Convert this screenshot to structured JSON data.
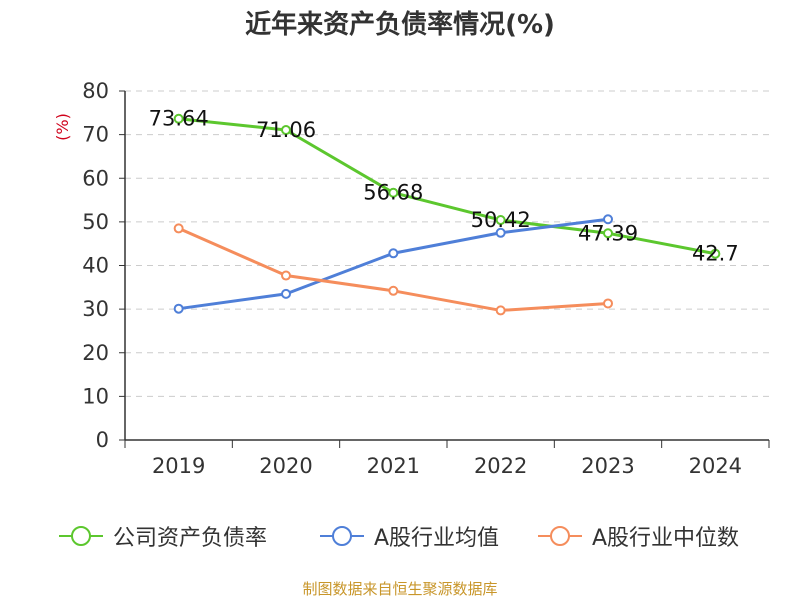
{
  "title": "近年来资产负债率情况(%)",
  "source": "制图数据来自恒生聚源数据库",
  "chart_data": {
    "type": "line",
    "title": "近年来资产负债率情况(%)",
    "ylabel": "(%)",
    "xlabel": "",
    "ylim": [
      0,
      80
    ],
    "yticks": [
      0,
      10,
      20,
      30,
      40,
      50,
      60,
      70,
      80
    ],
    "grid": true,
    "legend_position": "bottom",
    "categories": [
      "2019",
      "2020",
      "2021",
      "2022",
      "2023",
      "2024"
    ],
    "series": [
      {
        "name": "公司资产负债率",
        "color": "#5cc72e",
        "values": [
          73.64,
          71.06,
          56.68,
          50.42,
          47.39,
          42.7
        ],
        "data_labels": [
          "73.64",
          "71.06",
          "56.68",
          "50.42",
          "47.39",
          "42.7"
        ]
      },
      {
        "name": "A股行业均值",
        "color": "#4f7fd8",
        "values": [
          30.1,
          33.5,
          42.8,
          47.5,
          50.6,
          null
        ]
      },
      {
        "name": "A股行业中位数",
        "color": "#f58d5c",
        "values": [
          48.5,
          37.7,
          34.2,
          29.7,
          31.3,
          null
        ]
      }
    ]
  }
}
